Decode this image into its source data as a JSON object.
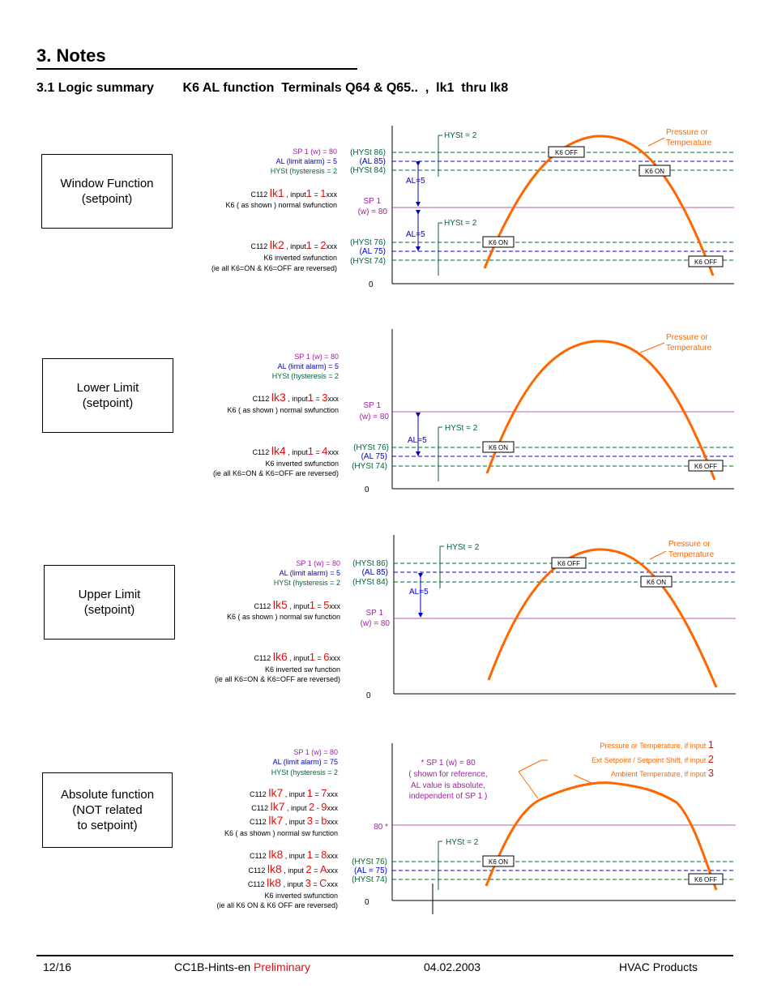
{
  "header": {
    "title": "3. Notes",
    "subtitle": "3.1 Logic summary        K6 AL function  Terminals Q64 & Q65..  ,  lk1  thru lk8"
  },
  "colors": {
    "purple": "#a020a0",
    "blue": "#0000cc",
    "green": "#006633",
    "orange": "#ff6600",
    "red": "#e01010"
  },
  "panels": {
    "window": {
      "box": [
        "Window Function",
        "(setpoint)"
      ],
      "sp": "SP 1 (w) = 80",
      "al": "AL (limit alarm) =  5",
      "hyst": "HYSt (hysteresis =  2",
      "c1a": "C112 ",
      "lk1": "lk1",
      "c1b": " , input",
      "i1": "1",
      "eq1": " = ",
      "v1": "1",
      "x1": "xxx",
      "shown1": "K6 ( as  shown  ) normal swfunction",
      "c2a": "C112 ",
      "lk2": "lk2",
      "c2b": " , input",
      "i2": "1",
      "eq2": " = ",
      "v2": "2",
      "x2": "xxx",
      "inv": "K6 inverted swfunction",
      "rev": "(ie all K6=ON  & K6=OFF are reversed)",
      "hyst86": "(HYSt 86)",
      "al85": "(AL 85)",
      "hyst84": "(HYSt 84)",
      "sp1": "SP 1",
      "w80": "(w) = 80",
      "hyst76": "(HYSt 76)",
      "al75": "(AL 75)",
      "hyst74": "(HYSt 74)",
      "zero": "0",
      "hystTop": "HYSt  = 2",
      "hystBot": "HYSt  = 2",
      "al5a": "AL=5",
      "al5b": "AL=5",
      "k6off1": "K6 OFF",
      "k6on1": "K6 ON",
      "k6on2": "K6 ON",
      "k6off2": "K6 OFF",
      "pt": [
        "Pressure or",
        "Temperature"
      ]
    },
    "lower": {
      "box": [
        "Lower Limit",
        "(setpoint)"
      ],
      "sp": "SP 1 (w) = 80",
      "al": "AL (limit alarm) =  5",
      "hyst": "HYSt (hysteresis =  2",
      "c1a": "C112 ",
      "lk1": "lk3",
      "c1b": " , input",
      "i1": "1",
      "eq1": " = ",
      "v1": "3",
      "x1": "xxx",
      "shown1": "K6 ( as  shown  ) normal swfunction",
      "c2a": "C112 ",
      "lk2": "lk4",
      "c2b": " , input",
      "i2": "1",
      "eq2": " = ",
      "v2": "4",
      "x2": "xxx",
      "inv": "K6 inverted swfunction",
      "rev": "(ie all K6=ON & K6=OFF are reversed)",
      "sp1": "SP 1",
      "w80": "(w) = 80",
      "hyst76": "(HYSt 76)",
      "al75": "(AL 75)",
      "hyst74": "(HYSt 74)",
      "zero": "0",
      "hystBot": "HYSt  = 2",
      "al5b": "AL=5",
      "k6on2": "K6 ON",
      "k6off2": "K6 OFF",
      "pt": [
        "Pressure or",
        "Temperature"
      ]
    },
    "upper": {
      "box": [
        "Upper Limit",
        "(setpoint)"
      ],
      "sp": "SP 1 (w) = 80",
      "al": "AL (limit alarm) =  5",
      "hyst": "HYSt (hysteresis =  2",
      "c1a": "C112 ",
      "lk1": "lk5",
      "c1b": " , input",
      "i1": "1",
      "eq1": " = ",
      "v1": "5",
      "x1": "xxx",
      "shown1": "K6 ( as  shown  ) normal sw function",
      "c2a": "C112 ",
      "lk2": "lk6",
      "c2b": " , input",
      "i2": "1",
      "eq2": " = ",
      "v2": "6",
      "x2": "xxx",
      "inv": "K6 inverted sw function",
      "rev": "(ie all K6=ON & K6=OFF are reversed)",
      "hyst86": "(HYSt 86)",
      "al85": "(AL 85)",
      "hyst84": "(HYSt 84)",
      "sp1": "SP 1",
      "w80": "(w) = 80",
      "zero": "0",
      "hystTop": "HYSt  = 2",
      "al5a": "AL=5",
      "k6off1": "K6 OFF",
      "k6on1": "K6 ON",
      "pt": [
        "Pressure or",
        "Temperature"
      ]
    },
    "absolute": {
      "box": [
        "Absolute function",
        "(NOT related",
        "to setpoint)"
      ],
      "sp": "SP 1 (w) = 80",
      "al": "AL (limit alarm) = 75",
      "hyst": "HYSt (hysteresis =  2",
      "l1": [
        "C112 ",
        "lk7",
        " , input ",
        "1",
        " = ",
        "7",
        "xxx"
      ],
      "l2": [
        "C112 ",
        "lk7",
        " , input ",
        "2",
        " - ",
        "9",
        "xxx"
      ],
      "l3": [
        "C112 ",
        "lk7",
        " , input ",
        "3",
        " = ",
        "b",
        "xxx"
      ],
      "shown1": "K6 ( as  shown  ) normal sw function",
      "l4": [
        "C112 ",
        "lk8",
        " , input ",
        "1",
        " = ",
        "8",
        "xxx"
      ],
      "l5": [
        "C112 ",
        "lk8",
        " , input ",
        "2",
        " = ",
        "A",
        "xxx"
      ],
      "l6": [
        "C112 ",
        "lk8",
        " , input ",
        "3",
        " = ",
        "C",
        "xxx"
      ],
      "inv": "K6 inverted swfunction",
      "rev": "(ie all   K6 ON   &   K6 OFF   are reversed)",
      "note": [
        "*  SP 1 (w) = 80",
        "( shown for reference,",
        "AL value is absolute,",
        "independent of SP 1 )"
      ],
      "mark80": "80 *",
      "hyst76": "(HYSt 76)",
      "al75": "(AL = 75)",
      "hyst74": "(HYSt 74)",
      "zero": "0",
      "hystBot": "HYSt  = 2",
      "k6on2": "K6 ON",
      "k6off2": "K6 OFF",
      "leg1": [
        "Pressure or Temperature, if input ",
        "1"
      ],
      "leg2": [
        "Ext Setpoint / Setpoint Shift, if input ",
        "2"
      ],
      "leg3": [
        "Ambient Temperature, if input ",
        "3"
      ]
    }
  },
  "footer": {
    "page": "12/16",
    "doc": "CC1B-Hints-en ",
    "status": "Preliminary",
    "date": "04.02.2003",
    "dept": "HVAC Products"
  }
}
